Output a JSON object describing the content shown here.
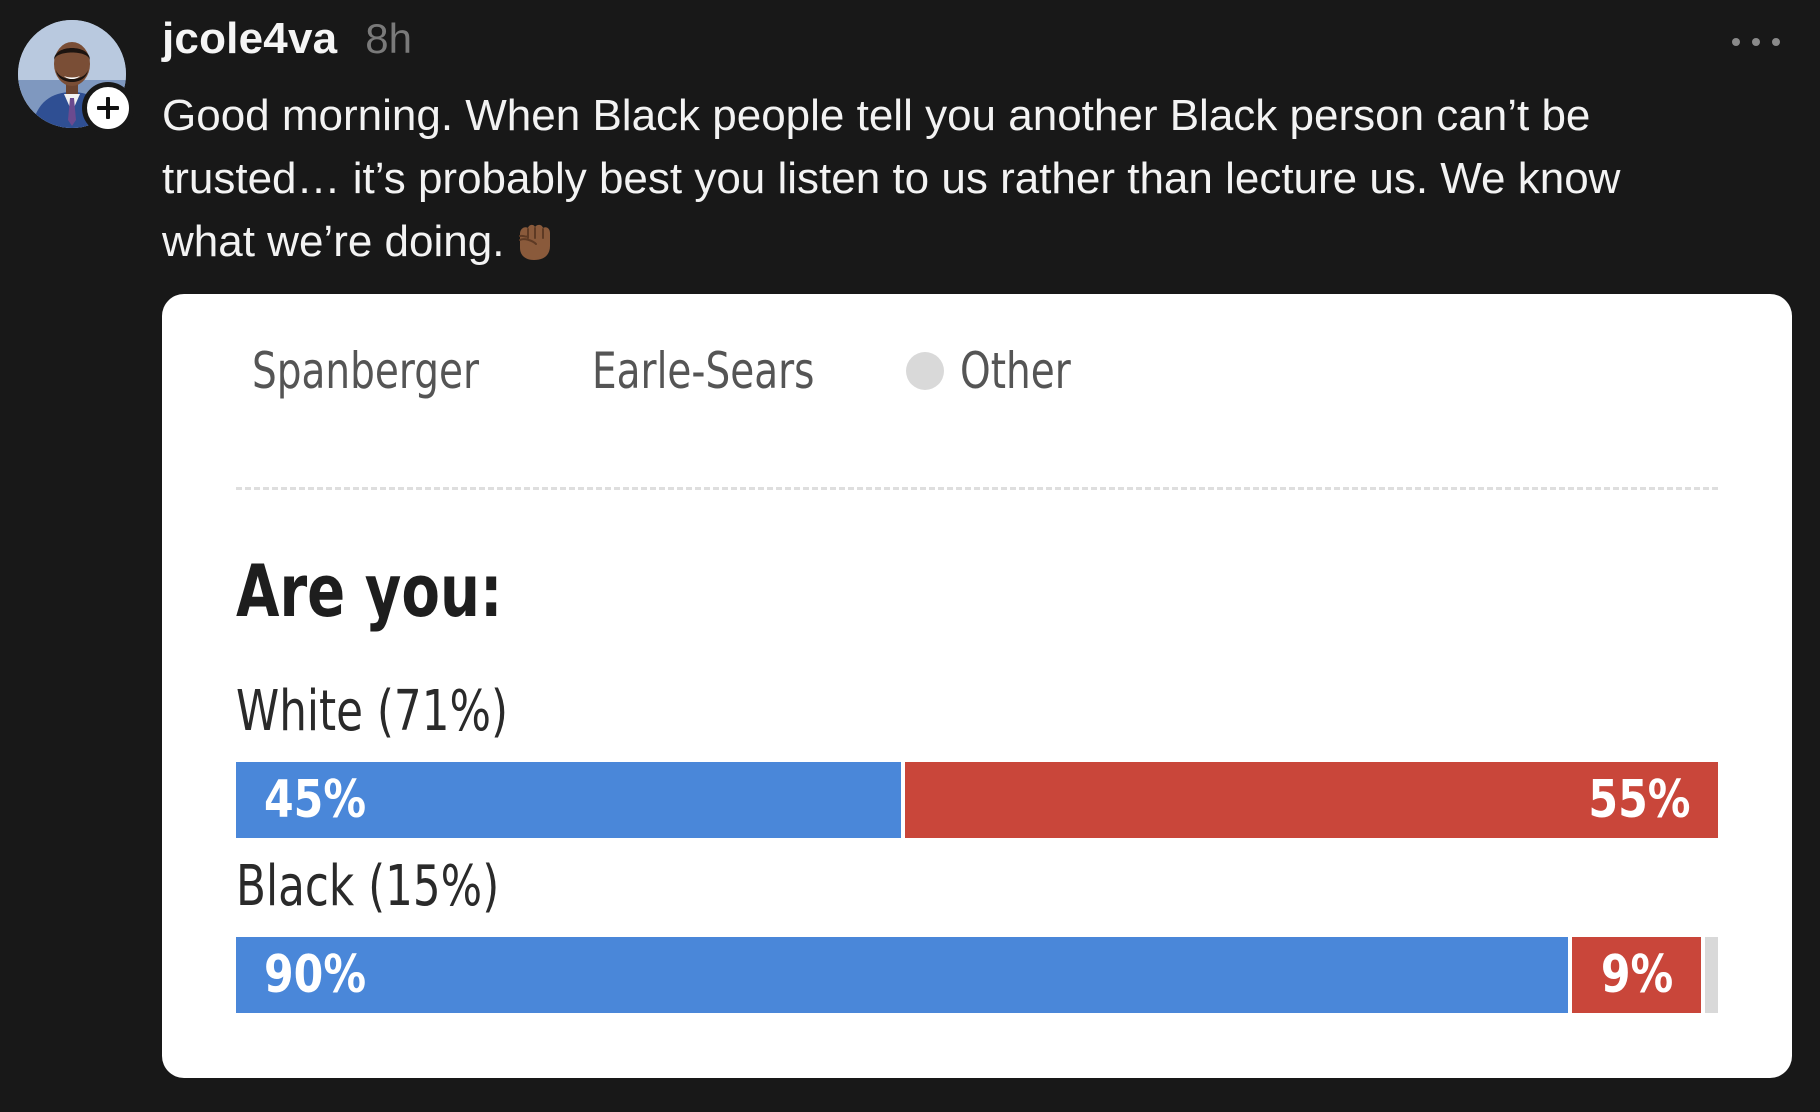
{
  "post": {
    "username": "jcole4va",
    "timestamp": "8h",
    "text": "Good morning. When Black people tell you another Black person can’t be trusted… it’s probably best you listen to us rather than lecture us. We know what we’re doing."
  },
  "icons": {
    "avatar": "profile-photo",
    "follow": "plus-icon",
    "more": "ellipsis-icon",
    "emoji": "raised-fist-icon"
  },
  "colors": {
    "spanberger": "#4a87d9",
    "earle_sears": "#c9463a",
    "other": "#d9d9d9"
  },
  "chart_data": {
    "type": "bar",
    "stacked": true,
    "orientation": "horizontal",
    "legend": [
      "Spanberger",
      "Earle-Sears",
      "Other"
    ],
    "title": "Are you:",
    "categories": [
      "White (71%)",
      "Black (15%)"
    ],
    "series": [
      {
        "name": "Spanberger",
        "values": [
          45,
          90
        ],
        "labels": [
          "45%",
          "90%"
        ]
      },
      {
        "name": "Earle-Sears",
        "values": [
          55,
          9
        ],
        "labels": [
          "55%",
          "9%"
        ]
      },
      {
        "name": "Other",
        "values": [
          0,
          1
        ]
      }
    ]
  }
}
